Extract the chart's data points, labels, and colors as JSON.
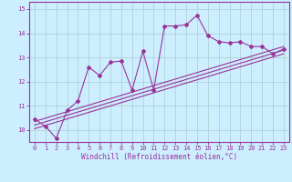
{
  "xlabel": "Windchill (Refroidissement éolien,°C)",
  "bg_color": "#cceeff",
  "line_color": "#993399",
  "grid_color": "#aacccc",
  "xlim": [
    -0.5,
    23.5
  ],
  "ylim": [
    9.5,
    15.3
  ],
  "yticks": [
    10,
    11,
    12,
    13,
    14,
    15
  ],
  "xticks": [
    0,
    1,
    2,
    3,
    4,
    5,
    6,
    7,
    8,
    9,
    10,
    11,
    12,
    13,
    14,
    15,
    16,
    17,
    18,
    19,
    20,
    21,
    22,
    23
  ],
  "main_x": [
    0,
    1,
    2,
    3,
    4,
    5,
    6,
    7,
    8,
    9,
    10,
    11,
    12,
    13,
    14,
    15,
    16,
    17,
    18,
    19,
    20,
    21,
    22,
    23
  ],
  "main_y": [
    10.45,
    10.15,
    9.65,
    10.8,
    11.2,
    12.6,
    12.25,
    12.8,
    12.85,
    11.65,
    13.25,
    11.65,
    14.3,
    14.3,
    14.35,
    14.75,
    13.9,
    13.65,
    13.6,
    13.65,
    13.45,
    13.45,
    13.15,
    13.35
  ],
  "line1_x": [
    0,
    23
  ],
  "line1_y": [
    10.05,
    13.15
  ],
  "line2_x": [
    0,
    23
  ],
  "line2_y": [
    10.2,
    13.3
  ],
  "line3_x": [
    0,
    23
  ],
  "line3_y": [
    10.35,
    13.45
  ]
}
